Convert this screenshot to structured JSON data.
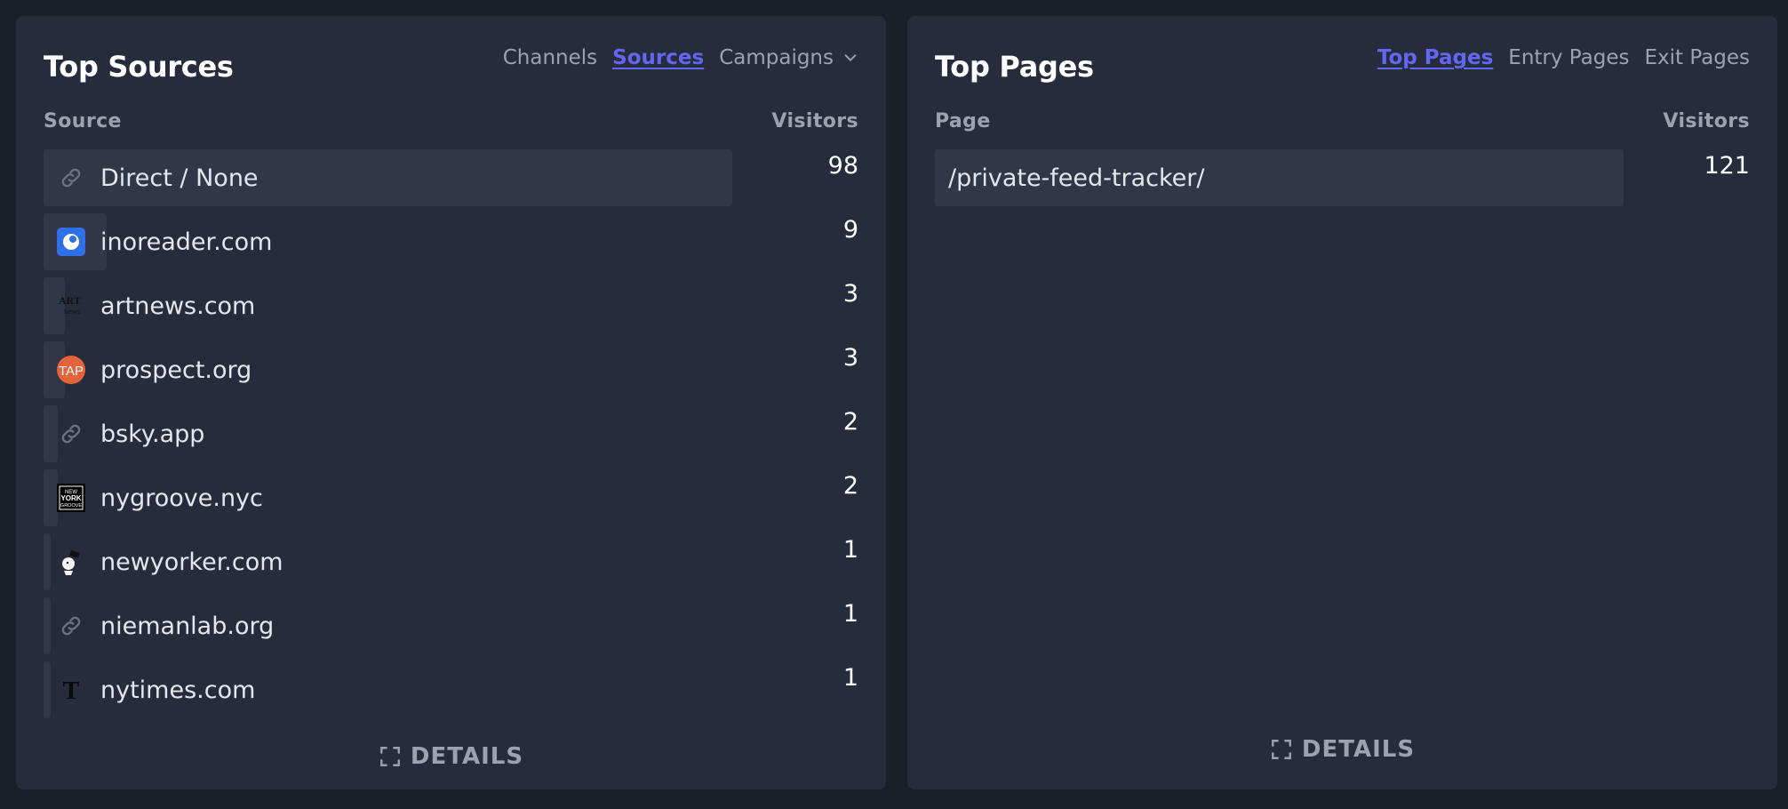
{
  "sources_card": {
    "title": "Top Sources",
    "tabs": [
      {
        "label": "Channels",
        "active": false
      },
      {
        "label": "Sources",
        "active": true
      },
      {
        "label": "Campaigns",
        "active": false
      }
    ],
    "col_source": "Source",
    "col_visitors": "Visitors",
    "rows": [
      {
        "label": "Direct / None",
        "value": "98",
        "icon": "link-icon"
      },
      {
        "label": "inoreader.com",
        "value": "9",
        "icon": "inoreader-icon"
      },
      {
        "label": "artnews.com",
        "value": "3",
        "icon": "artnews-icon",
        "icon_text": "ART news"
      },
      {
        "label": "prospect.org",
        "value": "3",
        "icon": "prospect-icon",
        "icon_text": "TAP"
      },
      {
        "label": "bsky.app",
        "value": "2",
        "icon": "link-icon"
      },
      {
        "label": "nygroove.nyc",
        "value": "2",
        "icon": "nygroove-icon",
        "icon_text": "NEW YORK GROOVE"
      },
      {
        "label": "newyorker.com",
        "value": "1",
        "icon": "newyorker-icon"
      },
      {
        "label": "niemanlab.org",
        "value": "1",
        "icon": "link-icon"
      },
      {
        "label": "nytimes.com",
        "value": "1",
        "icon": "nytimes-icon",
        "icon_text": "T"
      }
    ],
    "details_label": "DETAILS"
  },
  "pages_card": {
    "title": "Top Pages",
    "tabs": [
      {
        "label": "Top Pages",
        "active": true
      },
      {
        "label": "Entry Pages",
        "active": false
      },
      {
        "label": "Exit Pages",
        "active": false
      }
    ],
    "col_page": "Page",
    "col_visitors": "Visitors",
    "rows": [
      {
        "label": "/private-feed-tracker/",
        "value": "121"
      }
    ],
    "details_label": "DETAILS"
  },
  "colors": {
    "background": "#1b1f28",
    "card": "#262c3b",
    "bar": "#2f3749",
    "accent": "#6366f1",
    "muted": "#9ca3af"
  }
}
